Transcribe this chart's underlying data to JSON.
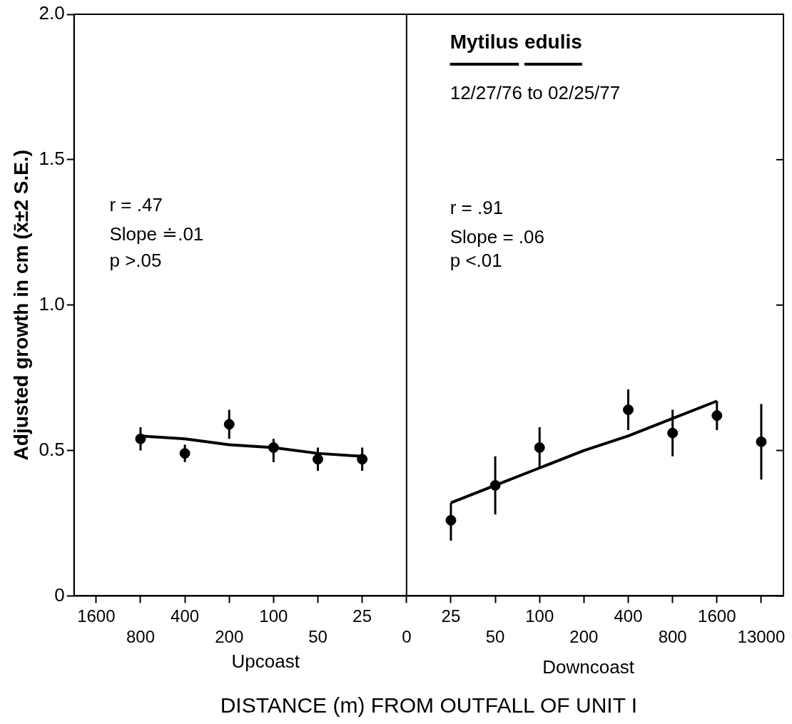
{
  "chart_data": {
    "type": "scatter",
    "title": "Mytilus edulis",
    "subtitle": "12/27/76 to 02/25/77",
    "xlabel": "DISTANCE (m) FROM OUTFALL OF UNIT I",
    "ylabel": "Adjusted growth in cm (x̄±2 S.E.)",
    "categories": [
      "1600",
      "800",
      "400",
      "200",
      "100",
      "50",
      "25",
      "0",
      "25",
      "50",
      "100",
      "200",
      "400",
      "800",
      "1600",
      "13000"
    ],
    "series": [
      {
        "type": "scatter",
        "color": "#000000",
        "values": [
          null,
          0.54,
          0.49,
          0.59,
          0.51,
          0.47,
          0.47,
          null,
          0.26,
          0.38,
          0.51,
          null,
          0.64,
          0.56,
          0.62,
          0.53
        ],
        "errors": [
          null,
          [
            0.5,
            0.58
          ],
          [
            0.46,
            0.52
          ],
          [
            0.54,
            0.64
          ],
          [
            0.46,
            0.54
          ],
          [
            0.43,
            0.51
          ],
          [
            0.43,
            0.51
          ],
          null,
          [
            0.19,
            0.32
          ],
          [
            0.28,
            0.48
          ],
          [
            0.44,
            0.58
          ],
          null,
          [
            0.57,
            0.71
          ],
          [
            0.48,
            0.64
          ],
          [
            0.57,
            0.67
          ],
          [
            0.4,
            0.66
          ]
        ]
      },
      {
        "type": "line",
        "marker": "none",
        "color": "#000000",
        "values": [
          null,
          0.55,
          0.54,
          0.52,
          0.51,
          0.49,
          0.48,
          null,
          null,
          null,
          null,
          null,
          null,
          null,
          null,
          null
        ]
      },
      {
        "type": "line",
        "marker": "none",
        "color": "#000000",
        "values": [
          null,
          null,
          null,
          null,
          null,
          null,
          null,
          null,
          0.32,
          0.38,
          0.44,
          0.5,
          0.55,
          0.61,
          0.67,
          null
        ]
      }
    ],
    "ylim": [
      0,
      2
    ],
    "yticks": [
      0,
      0.5,
      {
        "value": 1,
        "label": "1.0"
      },
      1.5,
      {
        "value": 2,
        "label": "2.0"
      }
    ],
    "ref_lines": [
      {
        "axis": "x",
        "value": "0",
        "color": "#000000"
      }
    ],
    "annotations": [
      "r = .47",
      "Slope ≐.01",
      "p >.05",
      "r = .91",
      "Slope = .06",
      "p <.01",
      "Upcoast",
      "Downcoast"
    ],
    "marker": "circle",
    "grid": false,
    "legend": false
  }
}
